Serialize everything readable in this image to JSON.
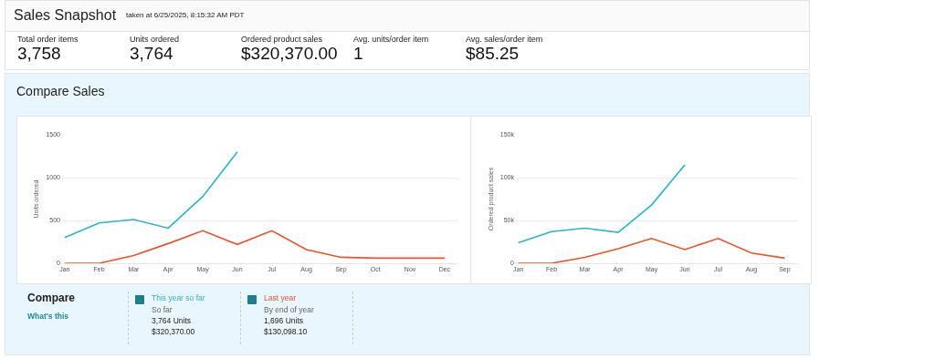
{
  "chart_data": [
    {
      "type": "other",
      "title": "Sales Snapshot",
      "subtitle": "taken at 6/25/2025, 8:15:32 AM PDT",
      "annotations": [
        "Total order items",
        "3,758",
        "Units ordered",
        "3,764",
        "Ordered product sales",
        "$320,370.00",
        "Avg. units/order item",
        "1",
        "Avg. sales/order item",
        "$85.25"
      ]
    },
    {
      "type": "line",
      "title": "Compare Sales",
      "ylabel": "Units ordered",
      "categories": [
        "Jan",
        "Feb",
        "Mar",
        "Apr",
        "May",
        "Jun",
        "Jul",
        "Aug",
        "Sep",
        "Oct",
        "Nov",
        "Dec"
      ],
      "ylim": [
        0,
        1500
      ],
      "yticks": [
        0,
        500,
        1000,
        1500
      ],
      "grid": "y",
      "legend": "bottom left",
      "series": [
        {
          "name": "This year so far",
          "color": "#2bb5c5",
          "values": [
            300,
            470,
            510,
            410,
            780,
            1300,
            null,
            null,
            null,
            null,
            null,
            null
          ]
        },
        {
          "name": "Last year",
          "color": "#e8522c",
          "values": [
            0,
            0,
            90,
            230,
            380,
            220,
            380,
            160,
            70,
            60,
            60,
            60
          ]
        }
      ],
      "annotations": [
        "Compare",
        "What's this",
        "So far",
        "3,764 Units",
        "$320,370.00",
        "By end of year",
        "1,696 Units",
        "$130,098.10"
      ]
    },
    {
      "type": "line",
      "ylabel": "Ordered product sales",
      "categories": [
        "Jan",
        "Feb",
        "Mar",
        "Apr",
        "May",
        "Jun",
        "Jul",
        "Aug",
        "Sep"
      ],
      "ylim": [
        0,
        150000
      ],
      "yticks": [
        0,
        {
          "value": 50000,
          "label": "50k"
        },
        {
          "value": 100000,
          "label": "100k"
        },
        {
          "value": 150000,
          "label": "150k"
        }
      ],
      "grid": "y",
      "series": [
        {
          "color": "#2bb5c5",
          "values": [
            24000,
            37000,
            41000,
            36000,
            68000,
            115000,
            null,
            null,
            null
          ]
        },
        {
          "color": "#e8522c",
          "values": [
            0,
            0,
            7000,
            17000,
            29000,
            16000,
            29000,
            12000,
            6000
          ]
        }
      ]
    }
  ]
}
